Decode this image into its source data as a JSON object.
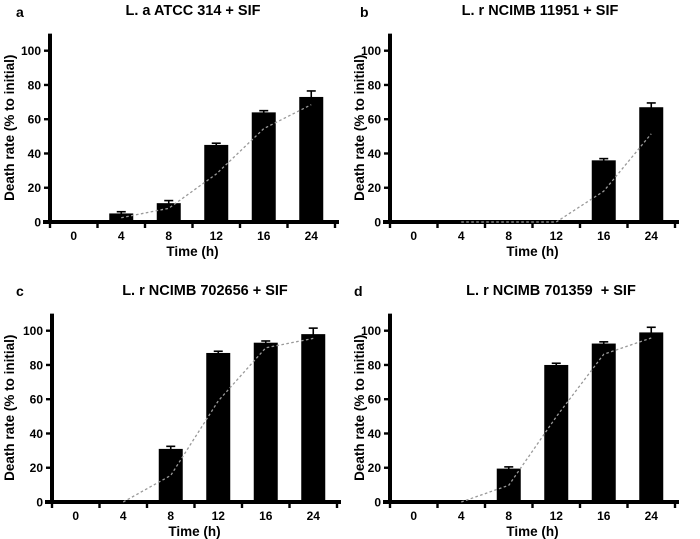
{
  "figure": {
    "background": "#ffffff",
    "bar_color": "#000000",
    "axis_color": "#000000",
    "error_bar_color": "#000000",
    "trendline_color": "#999999"
  },
  "chart_data": [
    {
      "type": "bar",
      "panel": "a",
      "title": "L. a ATCC 314 + SIF",
      "xlabel": "Time (h)",
      "ylabel": "Death rate (% to initial)",
      "categories": [
        "0",
        "4",
        "8",
        "12",
        "16",
        "24"
      ],
      "values": [
        0,
        5,
        11,
        45,
        64,
        73
      ],
      "errors": [
        0,
        1,
        1.5,
        1,
        1,
        3.5
      ],
      "yticks": [
        0,
        20,
        40,
        60,
        80,
        100
      ],
      "ylim": [
        0,
        110
      ],
      "grid": false,
      "legend": "none",
      "trendline": {
        "type": "moving_average",
        "period": 2,
        "style": "dashed"
      }
    },
    {
      "type": "bar",
      "panel": "b",
      "title": "L. r NCIMB 11951 + SIF",
      "xlabel": "Time (h)",
      "ylabel": "Death rate (% to initial)",
      "categories": [
        "0",
        "4",
        "8",
        "12",
        "16",
        "24"
      ],
      "values": [
        0,
        0,
        0,
        0,
        36,
        67
      ],
      "errors": [
        0,
        0,
        0,
        0,
        1,
        2.5
      ],
      "yticks": [
        0,
        20,
        40,
        60,
        80,
        100
      ],
      "ylim": [
        0,
        110
      ],
      "grid": false,
      "legend": "none",
      "trendline": {
        "type": "moving_average",
        "period": 2,
        "style": "dashed"
      }
    },
    {
      "type": "bar",
      "panel": "c",
      "title": "L. r NCIMB 702656 + SIF",
      "xlabel": "Time (h)",
      "ylabel": "Death rate (% to initial)",
      "categories": [
        "0",
        "4",
        "8",
        "12",
        "16",
        "24"
      ],
      "values": [
        0,
        0,
        31,
        87,
        93,
        98
      ],
      "errors": [
        0,
        0,
        1.5,
        1,
        1,
        3.5
      ],
      "yticks": [
        0,
        20,
        40,
        60,
        80,
        100
      ],
      "ylim": [
        0,
        110
      ],
      "grid": false,
      "legend": "none",
      "trendline": {
        "type": "moving_average",
        "period": 2,
        "style": "dashed"
      }
    },
    {
      "type": "bar",
      "panel": "d",
      "title": "L. r NCIMB 701359  + SIF",
      "xlabel": "Time (h)",
      "ylabel": "Death rate (% to initial)",
      "categories": [
        "0",
        "4",
        "8",
        "12",
        "16",
        "24"
      ],
      "values": [
        0,
        0,
        19.5,
        80,
        92.5,
        99
      ],
      "errors": [
        0,
        0,
        1,
        1,
        1,
        3
      ],
      "yticks": [
        0,
        20,
        40,
        60,
        80,
        100
      ],
      "ylim": [
        0,
        110
      ],
      "grid": false,
      "legend": "none",
      "trendline": {
        "type": "moving_average",
        "period": 2,
        "style": "dashed"
      }
    }
  ]
}
